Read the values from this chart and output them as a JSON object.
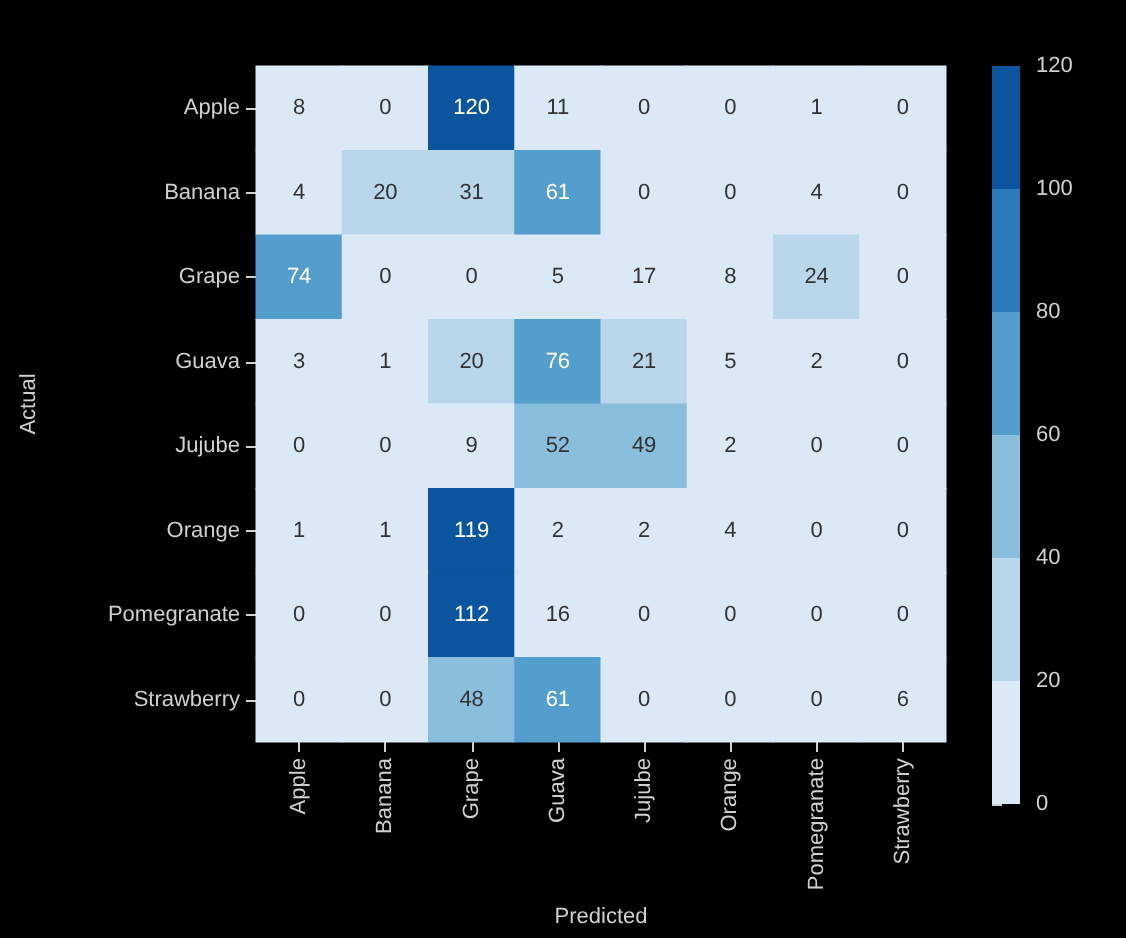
{
  "chart_data": {
    "type": "heatmap",
    "xlabel": "Predicted",
    "ylabel": "Actual",
    "categories": [
      "Apple",
      "Banana",
      "Grape",
      "Guava",
      "Jujube",
      "Orange",
      "Pomegranate",
      "Strawberry"
    ],
    "y_categories": [
      "Apple",
      "Banana",
      "Grape",
      "Guava",
      "Jujube",
      "Orange",
      "Pomegranate",
      "Strawberry"
    ],
    "cells": [
      [
        8,
        0,
        120,
        11,
        0,
        0,
        1,
        0
      ],
      [
        4,
        20,
        31,
        61,
        0,
        0,
        4,
        0
      ],
      [
        74,
        0,
        0,
        5,
        17,
        8,
        24,
        0
      ],
      [
        3,
        1,
        20,
        76,
        21,
        5,
        2,
        0
      ],
      [
        0,
        0,
        9,
        52,
        49,
        2,
        0,
        0
      ],
      [
        1,
        1,
        119,
        2,
        2,
        4,
        0,
        0
      ],
      [
        0,
        0,
        112,
        16,
        0,
        0,
        0,
        0
      ],
      [
        0,
        0,
        48,
        61,
        0,
        0,
        0,
        6
      ]
    ],
    "clim": [
      0,
      120
    ],
    "cticks": [
      0,
      20,
      40,
      60,
      80,
      100,
      120
    ],
    "data_labels": true,
    "grid": false
  }
}
